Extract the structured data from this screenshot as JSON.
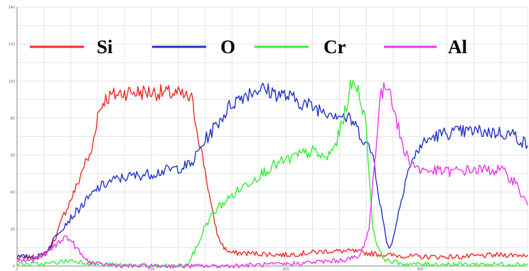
{
  "chart_data": {
    "type": "line",
    "title": "",
    "xlabel": "",
    "ylabel": "",
    "xlim": [
      0,
      380
    ],
    "ylim": [
      0,
      140
    ],
    "grid": true,
    "legend_position": "top",
    "y_ticks": [
      "0",
      "20",
      "40",
      "60",
      "80",
      "100",
      "120",
      "140"
    ],
    "x_ticks": [
      "0",
      "100",
      "200",
      "300"
    ],
    "series": [
      {
        "name": "Si",
        "color": "#ee2a2a",
        "x": [
          0,
          15,
          20,
          25,
          30,
          35,
          40,
          45,
          50,
          55,
          60,
          65,
          70,
          80,
          100,
          120,
          130,
          135,
          140,
          145,
          150,
          155,
          160,
          170,
          200,
          230,
          250,
          260,
          275,
          300,
          330,
          360,
          380
        ],
        "y": [
          4,
          5,
          6,
          10,
          18,
          28,
          36,
          44,
          55,
          60,
          82,
          90,
          92,
          94,
          94,
          93,
          90,
          70,
          52,
          30,
          15,
          9,
          7,
          7,
          6,
          8,
          8,
          7,
          6,
          5,
          5,
          6,
          6
        ]
      },
      {
        "name": "O",
        "color": "#2233cc",
        "x": [
          0,
          15,
          20,
          25,
          30,
          40,
          50,
          60,
          70,
          80,
          100,
          120,
          130,
          135,
          140,
          150,
          160,
          170,
          180,
          190,
          200,
          220,
          240,
          250,
          255,
          265,
          270,
          275,
          278,
          282,
          290,
          300,
          310,
          320,
          340,
          360,
          370,
          380
        ],
        "y": [
          5,
          5,
          7,
          11,
          18,
          26,
          34,
          42,
          46,
          48,
          50,
          53,
          55,
          62,
          68,
          78,
          88,
          93,
          96,
          94,
          92,
          86,
          82,
          78,
          72,
          60,
          35,
          13,
          10,
          22,
          50,
          65,
          70,
          72,
          73,
          72,
          71,
          65
        ]
      },
      {
        "name": "Cr",
        "color": "#33ee33",
        "x": [
          0,
          20,
          30,
          40,
          50,
          60,
          100,
          125,
          128,
          135,
          140,
          150,
          170,
          190,
          210,
          220,
          230,
          236,
          240,
          245,
          248,
          252,
          256,
          260,
          262,
          265,
          270,
          275,
          290,
          320,
          350,
          380
        ],
        "y": [
          1,
          1,
          2,
          3,
          2,
          1,
          0,
          0,
          2,
          12,
          22,
          32,
          44,
          54,
          60,
          62,
          58,
          64,
          72,
          86,
          96,
          99,
          90,
          75,
          50,
          20,
          7,
          3,
          1,
          1,
          1,
          1
        ]
      },
      {
        "name": "Al",
        "color": "#ee33ee",
        "x": [
          0,
          10,
          20,
          30,
          35,
          40,
          45,
          50,
          55,
          60,
          80,
          120,
          150,
          200,
          240,
          255,
          262,
          266,
          270,
          275,
          278,
          282,
          288,
          295,
          300,
          320,
          340,
          360,
          370,
          380
        ],
        "y": [
          3,
          3,
          6,
          12,
          16,
          14,
          9,
          4,
          2,
          1,
          0,
          0,
          0,
          1,
          3,
          5,
          20,
          55,
          90,
          98,
          95,
          80,
          62,
          55,
          52,
          51,
          52,
          52,
          46,
          33
        ]
      }
    ]
  }
}
